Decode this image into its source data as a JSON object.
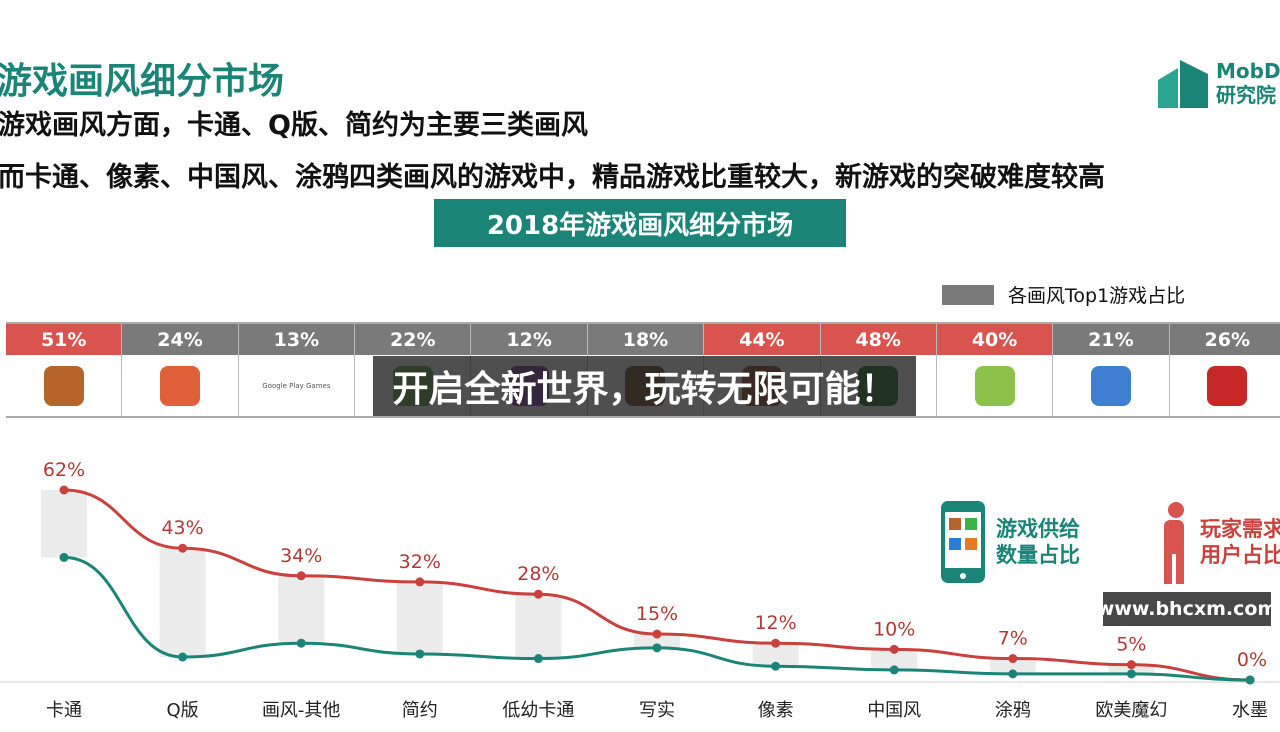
{
  "header": {
    "title": "游戏画风细分市场",
    "line1": "游戏画风方面，卡通、Q版、简约为主要三类画风",
    "line2": "而卡通、像素、中国风、涂鸦四类画风的游戏中，精品游戏比重较大，新游戏的突破难度较高",
    "logo": [
      "MobD",
      "研究院"
    ]
  },
  "banner": "2018年游戏画风细分市场",
  "legend_top": "各画风Top1游戏占比",
  "top_games": [
    {
      "pct": "51%",
      "color": "#d9534f"
    },
    {
      "pct": "24%",
      "color": "#7a7a7a"
    },
    {
      "pct": "13%",
      "color": "#7a7a7a",
      "icon_text": "Google Play Games"
    },
    {
      "pct": "22%",
      "color": "#7a7a7a"
    },
    {
      "pct": "12%",
      "color": "#7a7a7a"
    },
    {
      "pct": "18%",
      "color": "#7a7a7a"
    },
    {
      "pct": "44%",
      "color": "#d9534f"
    },
    {
      "pct": "48%",
      "color": "#d9534f"
    },
    {
      "pct": "40%",
      "color": "#d9534f"
    },
    {
      "pct": "21%",
      "color": "#7a7a7a"
    },
    {
      "pct": "26%",
      "color": "#7a7a7a"
    }
  ],
  "overlay": "开启全新世界，玩转无限可能！",
  "watermark": "www.bhcxm.com",
  "legend": {
    "supply": [
      "游戏供给",
      "数量占比"
    ],
    "demand": [
      "玩家需求",
      "用户占比"
    ]
  },
  "colors": {
    "teal": "#1a8577",
    "red": "#c9403c",
    "grey": "#7a7a7a"
  },
  "chart_data": {
    "type": "line",
    "categories": [
      "卡通",
      "Q版",
      "画风-其他",
      "简约",
      "低幼卡通",
      "写实",
      "像素",
      "中国风",
      "涂鸦",
      "欧美魔幻",
      "水墨"
    ],
    "series": [
      {
        "name": "玩家需求 用户占比",
        "color": "#c9403c",
        "values": [
          62,
          43,
          34,
          32,
          28,
          15,
          12,
          10,
          7,
          5,
          0
        ],
        "labels": [
          "62%",
          "43%",
          "34%",
          "32%",
          "28%",
          "15%",
          "12%",
          "10%",
          "7%",
          "5%",
          "0%"
        ]
      },
      {
        "name": "游戏供给 数量占比",
        "color": "#1a8577",
        "values": [
          40,
          7.5,
          12,
          8.5,
          7,
          10.5,
          4.5,
          3.3,
          2,
          2,
          0
        ]
      }
    ],
    "ylim": [
      0,
      65
    ]
  }
}
